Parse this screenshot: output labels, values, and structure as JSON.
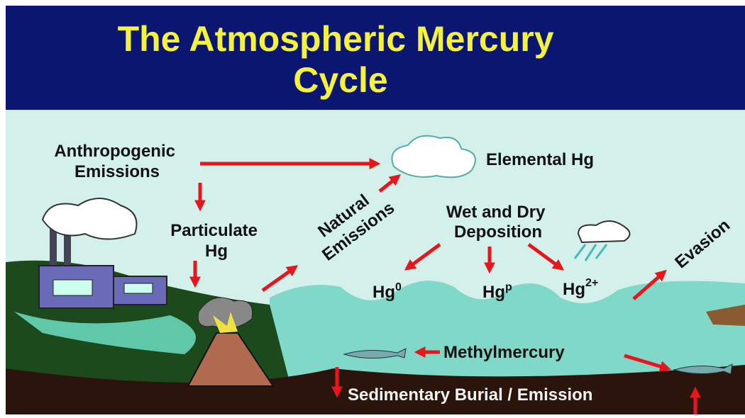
{
  "title": [
    "The Atmospheric Mercury",
    "Cycle"
  ],
  "labels": {
    "anthropogenic": [
      "Anthropogenic",
      "Emissions"
    ],
    "elemental": "Elemental Hg",
    "particulate": [
      "Particulate",
      "Hg"
    ],
    "natural": [
      "Natural",
      "Emissions"
    ],
    "deposition": [
      "Wet and Dry",
      "Deposition"
    ],
    "hg0": {
      "base": "Hg",
      "sup": "0"
    },
    "hgp": {
      "base": "Hg",
      "sup": "p"
    },
    "hg2": {
      "base": "Hg",
      "sup": "2+"
    },
    "evasion": "Evasion",
    "methyl": "Methylmercury",
    "sediment": "Sedimentary Burial / Emission"
  }
}
